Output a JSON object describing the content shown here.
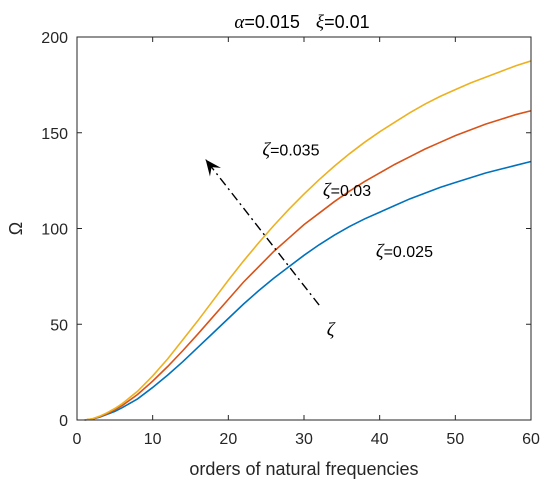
{
  "chart_data": {
    "type": "line",
    "title_parts": [
      {
        "symbol": "α",
        "value": "=0.015"
      },
      {
        "symbol": "ξ",
        "value": "=0.01"
      }
    ],
    "xlabel": "orders of natural frequencies",
    "ylabel": "Ω",
    "xlim": [
      0,
      60
    ],
    "ylim": [
      0,
      200
    ],
    "xticks": [
      0,
      10,
      20,
      30,
      40,
      50,
      60
    ],
    "yticks": [
      0,
      50,
      100,
      150,
      200
    ],
    "grid": false,
    "x": [
      1,
      2,
      3,
      4,
      5,
      6,
      8,
      10,
      12,
      14,
      16,
      18,
      20,
      22,
      24,
      26,
      28,
      30,
      32,
      34,
      36,
      38,
      40,
      42,
      44,
      46,
      48,
      50,
      52,
      54,
      56,
      58,
      60
    ],
    "series": [
      {
        "key": "s025",
        "symbol": "ζ",
        "value": "=0.025",
        "color": "#0072bd",
        "values": [
          0,
          0.5,
          1.5,
          3,
          4.5,
          6.5,
          11,
          17,
          23.5,
          30.5,
          38,
          45.5,
          53,
          60.5,
          67.5,
          74,
          80,
          86,
          91.5,
          96.5,
          101,
          105,
          108.5,
          112,
          115.5,
          118.5,
          121.5,
          124,
          126.5,
          129,
          131,
          133,
          135
        ]
      },
      {
        "key": "s030",
        "symbol": "ζ",
        "value": "=0.03",
        "color": "#d95319",
        "values": [
          0,
          0.5,
          1.7,
          3.3,
          5.3,
          7.6,
          13.3,
          20.3,
          28,
          36.3,
          45,
          54,
          63,
          72,
          80,
          88,
          95,
          102,
          108,
          114,
          119.5,
          124.5,
          129,
          133.5,
          137.5,
          141.5,
          145,
          148.5,
          151.5,
          154.5,
          157,
          159.5,
          161.5
        ]
      },
      {
        "key": "s035",
        "symbol": "ζ",
        "value": "=0.035",
        "color": "#edb120",
        "values": [
          0,
          0.6,
          2,
          3.8,
          6,
          8.6,
          15,
          23,
          32,
          42,
          52,
          62.5,
          73,
          83,
          92.5,
          101.5,
          110,
          118,
          125.5,
          132.5,
          139,
          145,
          150.5,
          155.5,
          160.5,
          165,
          169,
          172.5,
          176,
          179,
          182,
          185,
          187.5
        ]
      }
    ],
    "annotations": {
      "s025": {
        "x": 39.5,
        "y": 85
      },
      "s030": {
        "x": 32.5,
        "y": 117
      },
      "s035": {
        "x": 24.5,
        "y": 138
      },
      "arrow": {
        "from": {
          "x": 32,
          "y": 60
        },
        "to": {
          "x": 17,
          "y": 136
        }
      },
      "arrow_label": {
        "x": 33,
        "y": 44,
        "symbol": "ζ"
      }
    }
  }
}
